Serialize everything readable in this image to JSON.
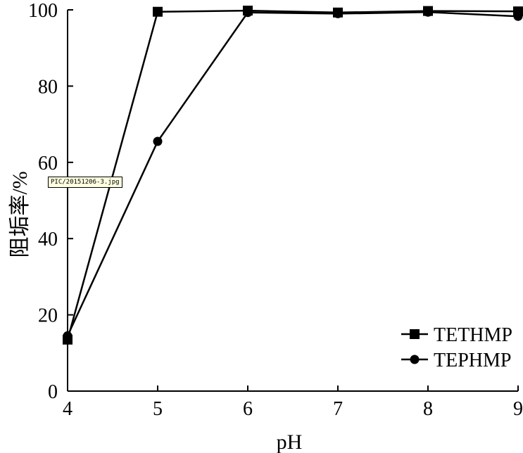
{
  "tooltip": "PIC/20151206-3.jpg",
  "chart_data": {
    "type": "line",
    "title": "",
    "xlabel": "pH",
    "ylabel": "阻垢率/%",
    "x": [
      4,
      5,
      6,
      7,
      8,
      9
    ],
    "xlim": [
      4,
      9
    ],
    "ylim": [
      0,
      100
    ],
    "xticks": [
      "4",
      "5",
      "6",
      "7",
      "8",
      "9"
    ],
    "yticks": [
      "0",
      "20",
      "40",
      "60",
      "80",
      "100"
    ],
    "grid": false,
    "legend_position": "bottom-right",
    "series": [
      {
        "name": "TETHMP",
        "marker": "square",
        "color": "#000000",
        "values": [
          13.5,
          99.5,
          99.8,
          99.3,
          99.7,
          99.6
        ]
      },
      {
        "name": "TEPHMP",
        "marker": "circle",
        "color": "#000000",
        "values": [
          14.5,
          65.5,
          99.3,
          99.0,
          99.4,
          98.3
        ]
      }
    ]
  }
}
